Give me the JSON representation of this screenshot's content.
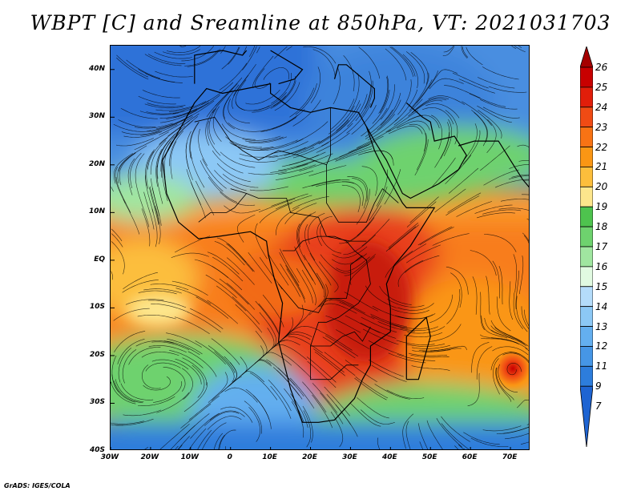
{
  "title": "WBPT [C] and Sreamline at 850hPa, VT: 2021031703",
  "credit": "GrADS: IGES/COLA",
  "map": {
    "lon_range": [
      -30,
      75
    ],
    "lat_range": [
      -40,
      45
    ],
    "lat_labels": [
      {
        "value": 40,
        "label": "40N"
      },
      {
        "value": 30,
        "label": "30N"
      },
      {
        "value": 20,
        "label": "20N"
      },
      {
        "value": 10,
        "label": "10N"
      },
      {
        "value": 0,
        "label": "EQ"
      },
      {
        "value": -10,
        "label": "10S"
      },
      {
        "value": -20,
        "label": "20S"
      },
      {
        "value": -30,
        "label": "30S"
      },
      {
        "value": -40,
        "label": "40S"
      }
    ],
    "lon_labels": [
      {
        "value": -30,
        "label": "30W"
      },
      {
        "value": -20,
        "label": "20W"
      },
      {
        "value": -10,
        "label": "10W"
      },
      {
        "value": 0,
        "label": "0"
      },
      {
        "value": 10,
        "label": "10E"
      },
      {
        "value": 20,
        "label": "20E"
      },
      {
        "value": 30,
        "label": "30E"
      },
      {
        "value": 40,
        "label": "40E"
      },
      {
        "value": 50,
        "label": "50E"
      },
      {
        "value": 60,
        "label": "60E"
      },
      {
        "value": 70,
        "label": "70E"
      }
    ]
  },
  "colorbar": {
    "labels": [
      "26",
      "25",
      "24",
      "23",
      "22",
      "21",
      "20",
      "19",
      "18",
      "17",
      "16",
      "15",
      "14",
      "13",
      "12",
      "11",
      "9",
      "7"
    ],
    "colors": [
      "#a50000",
      "#c80000",
      "#e11e0a",
      "#f04b14",
      "#f87314",
      "#fa9614",
      "#fcbe3c",
      "#fde68c",
      "#4ec34e",
      "#6ed26e",
      "#a0e6a0",
      "#e1fae1",
      "#b4dcfa",
      "#8cc8f5",
      "#64afef",
      "#4696e6",
      "#2d7ddc",
      "#1e64d2"
    ]
  }
}
